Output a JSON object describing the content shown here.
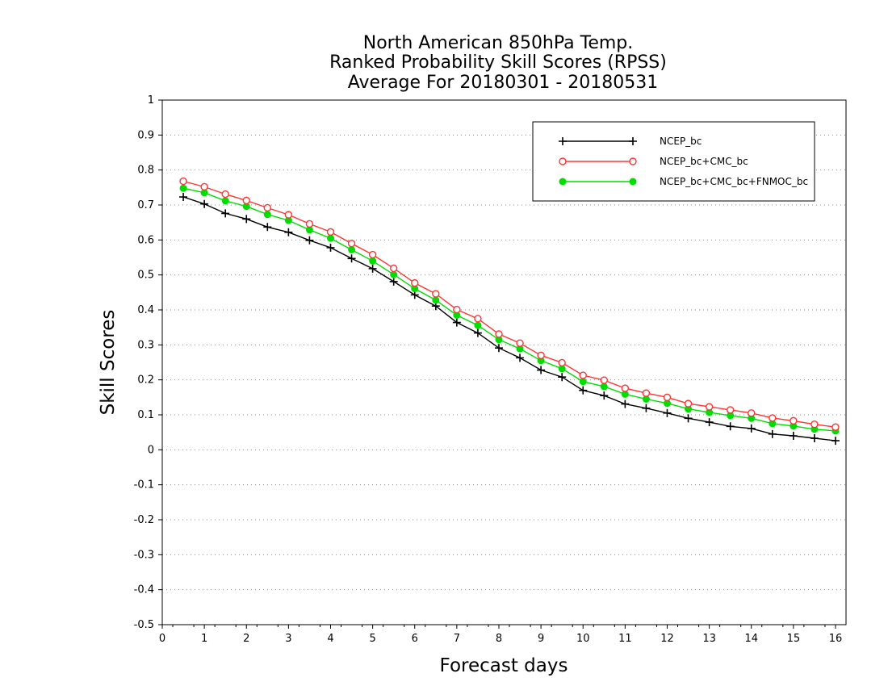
{
  "chart_data": {
    "type": "line",
    "title_lines": [
      "North American 850hPa Temp.",
      "Ranked Probability Skill Scores (RPSS)",
      "Average For 20180301 - 20180531"
    ],
    "xlabel": "Forecast days",
    "ylabel": "Skill Scores",
    "xlim": [
      0,
      16.25
    ],
    "ylim": [
      -0.5,
      1
    ],
    "x_ticks": [
      0,
      1,
      2,
      3,
      4,
      5,
      6,
      7,
      8,
      9,
      10,
      11,
      12,
      13,
      14,
      15,
      16
    ],
    "x_tick_labels": [
      "0",
      "1",
      "2",
      "3",
      "4",
      "5",
      "6",
      "7",
      "8",
      "9",
      "10",
      "11",
      "12",
      "13",
      "14",
      "15",
      "16"
    ],
    "y_ticks": [
      -0.5,
      -0.4,
      -0.3,
      -0.2,
      -0.1,
      0,
      0.1,
      0.2,
      0.3,
      0.4,
      0.5,
      0.6,
      0.7,
      0.8,
      0.9,
      1
    ],
    "y_tick_labels": [
      "-0.5",
      "-0.4",
      "-0.3",
      "-0.2",
      "-0.1",
      "0",
      "0.1",
      "0.2",
      "0.3",
      "0.4",
      "0.5",
      "0.6",
      "0.7",
      "0.8",
      "0.9",
      "1"
    ],
    "grid": "horizontal dotted",
    "legend_position": "top-right",
    "x": [
      0.5,
      1.0,
      1.5,
      2.0,
      2.5,
      3.0,
      3.5,
      4.0,
      4.5,
      5.0,
      5.5,
      6.0,
      6.5,
      7.0,
      7.5,
      8.0,
      8.5,
      9.0,
      9.5,
      10.0,
      10.5,
      11.0,
      11.5,
      12.0,
      12.5,
      13.0,
      13.5,
      14.0,
      14.5,
      15.0,
      15.5,
      16.0
    ],
    "series": [
      {
        "name": "NCEP_bc",
        "color": "#000000",
        "marker": "plus",
        "values": [
          0.723,
          0.703,
          0.676,
          0.66,
          0.637,
          0.622,
          0.599,
          0.578,
          0.547,
          0.518,
          0.481,
          0.443,
          0.411,
          0.364,
          0.334,
          0.291,
          0.263,
          0.228,
          0.208,
          0.17,
          0.155,
          0.131,
          0.119,
          0.105,
          0.09,
          0.079,
          0.067,
          0.061,
          0.045,
          0.04,
          0.033,
          0.026
        ]
      },
      {
        "name": "NCEP_bc+CMC_bc",
        "color": "#ff3333",
        "marker": "open-circle",
        "values": [
          0.768,
          0.752,
          0.731,
          0.713,
          0.692,
          0.672,
          0.646,
          0.623,
          0.59,
          0.558,
          0.519,
          0.477,
          0.446,
          0.401,
          0.375,
          0.331,
          0.305,
          0.27,
          0.249,
          0.213,
          0.199,
          0.176,
          0.162,
          0.15,
          0.132,
          0.123,
          0.114,
          0.105,
          0.091,
          0.083,
          0.073,
          0.065
        ]
      },
      {
        "name": "NCEP_bc+CMC_bc+FNMOC_bc",
        "color": "#00dd00",
        "marker": "filled-circle",
        "values": [
          0.748,
          0.735,
          0.712,
          0.696,
          0.673,
          0.656,
          0.629,
          0.605,
          0.572,
          0.54,
          0.501,
          0.461,
          0.428,
          0.385,
          0.356,
          0.315,
          0.289,
          0.255,
          0.232,
          0.195,
          0.181,
          0.159,
          0.145,
          0.133,
          0.117,
          0.107,
          0.098,
          0.09,
          0.075,
          0.068,
          0.059,
          0.054
        ]
      }
    ]
  }
}
